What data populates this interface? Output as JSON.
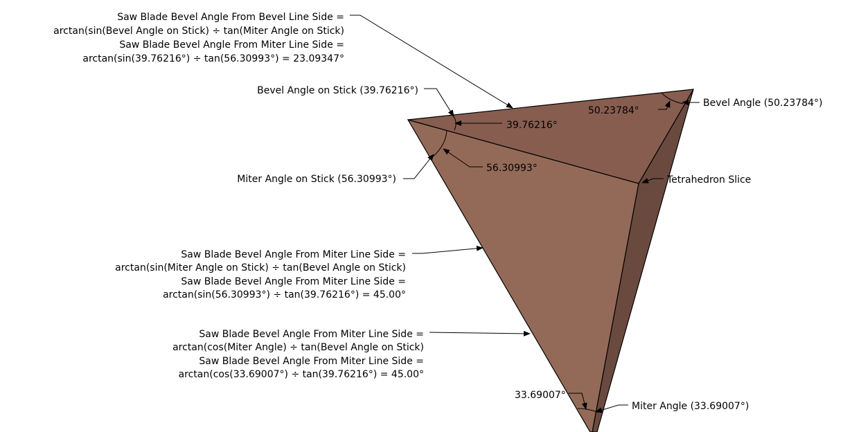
{
  "colors": {
    "top_face": "#875d50",
    "front_face": "#936a58",
    "side_face": "#6a4a3f",
    "edge": "#000000"
  },
  "labels": {
    "bevel_side_formula": [
      "Saw Blade Bevel Angle From Bevel Line Side =",
      "arctan(sin(Bevel Angle on Stick) ÷ tan(Miter Angle on Stick)",
      "Saw Blade Bevel Angle From Miter Line Side =",
      "arctan(sin(39.76216°) ÷ tan(56.30993°) = 23.09347°"
    ],
    "bevel_on_stick": "Bevel Angle on Stick (39.76216°)",
    "bevel_on_stick_value": "39.76216°",
    "bevel_angle_value": "50.23784°",
    "bevel_angle": "Bevel Angle (50.23784°)",
    "miter_on_stick": "Miter Angle on Stick (56.30993°)",
    "miter_on_stick_value": "56.30993°",
    "tetrahedron_slice": "Tetrahedron Slice",
    "miter_side_formula_sin": [
      "Saw Blade Bevel Angle From Miter Line Side =",
      "arctan(sin(Miter Angle on Stick) ÷ tan(Bevel Angle on Stick)",
      "Saw Blade Bevel Angle From Miter Line Side =",
      "arctan(sin(56.30993°) ÷ tan(39.76216°) = 45.00°"
    ],
    "miter_side_formula_cos": [
      "Saw Blade Bevel Angle From Miter Line Side =",
      "arctan(cos(Miter Angle) ÷ tan(Bevel Angle on Stick)",
      "Saw Blade Bevel Angle From Miter Line Side =",
      "arctan(cos(33.69007°) ÷ tan(39.76216°) = 45.00°"
    ],
    "miter_angle_value": "33.69007°",
    "miter_angle": "Miter Angle (33.69007°)"
  }
}
